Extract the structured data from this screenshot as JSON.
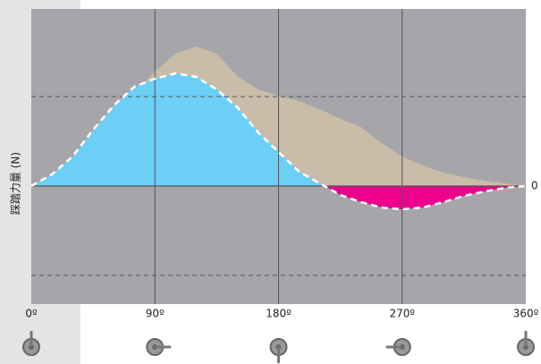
{
  "chart_data": {
    "type": "area",
    "y_label": "踩踏力量 (N)",
    "x": [
      0,
      15,
      30,
      45,
      60,
      75,
      90,
      105,
      120,
      135,
      150,
      165,
      180,
      195,
      210,
      225,
      240,
      255,
      270,
      285,
      300,
      315,
      330,
      345,
      360
    ],
    "series": [
      {
        "color": "#c9bca8",
        "values": [
          0,
          12,
          28,
          52,
          78,
          104,
          128,
          148,
          156,
          148,
          123,
          108,
          101,
          95,
          86,
          75,
          66,
          48,
          33,
          23,
          15,
          10,
          6,
          3,
          0
        ]
      },
      {
        "color": "#6dcff6",
        "negative_color": "#ec008c",
        "values": [
          0,
          13,
          33,
          63,
          90,
          111,
          120,
          126,
          122,
          108,
          88,
          60,
          38,
          16,
          3,
          -10,
          -18,
          -24,
          -26,
          -24,
          -18,
          -11,
          -6,
          -2,
          0
        ]
      }
    ],
    "xlim": [
      0,
      360
    ],
    "xticks": [
      {
        "value": 0,
        "label": "0º"
      },
      {
        "value": 90,
        "label": "90º"
      },
      {
        "value": 180,
        "label": "180º"
      },
      {
        "value": 270,
        "label": "270º"
      },
      {
        "value": 360,
        "label": "360º"
      }
    ],
    "ylim": [
      -132,
      198
    ],
    "yticks": [
      0
    ],
    "dashed_grid": [
      100,
      -100
    ],
    "grid": true
  }
}
